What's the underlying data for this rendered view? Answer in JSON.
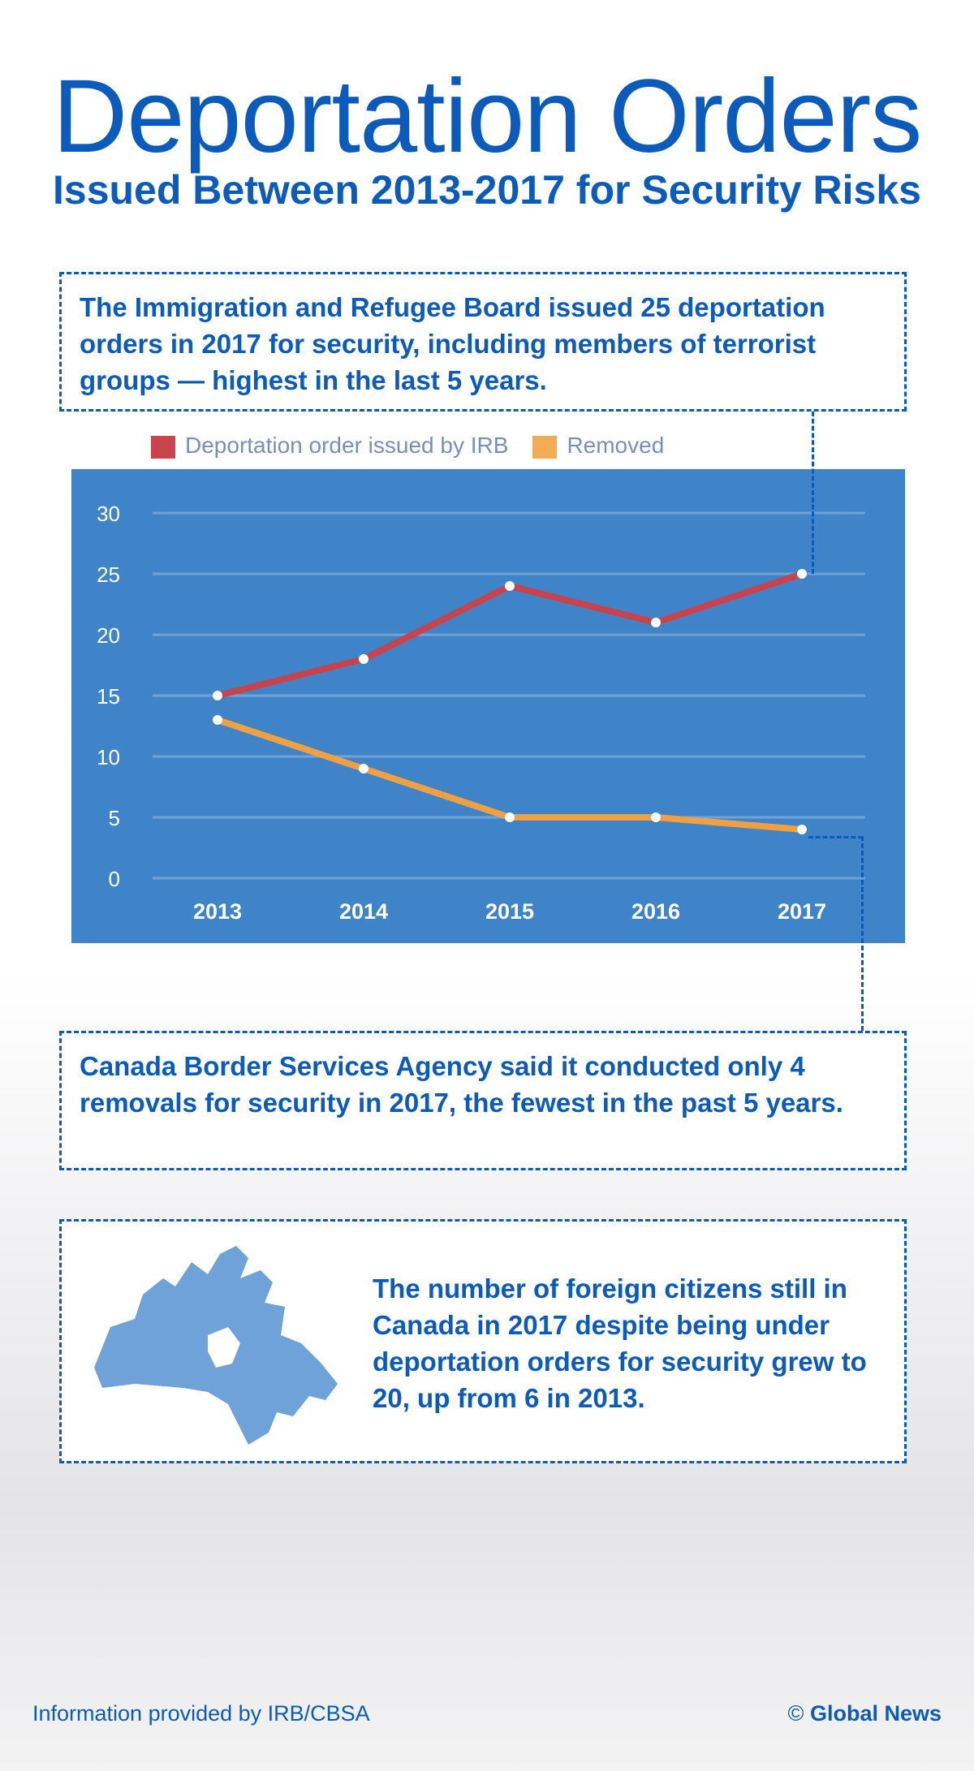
{
  "title": "Deportation Orders",
  "subtitle": "Issued Between 2013-2017 for Security Risks",
  "callouts": {
    "irb": "The Immigration and Refugee Board issued 25 deportation orders in 2017 for security, including members of terrorist groups — highest in the last 5 years.",
    "cbsa": "Canada Border Services Agency said it conducted only 4 removals for security in 2017, the fewest in the past 5 years.",
    "foreign": "The number of foreign citizens still in Canada in 2017 despite being under deportation orders for security grew to 20, up from 6 in 2013."
  },
  "footer": {
    "source": "Information provided by IRB/CBSA",
    "credit_symbol": "©",
    "credit": "Global News"
  },
  "chart_data": {
    "type": "line",
    "categories": [
      "2013",
      "2014",
      "2015",
      "2016",
      "2017"
    ],
    "series": [
      {
        "name": "Deportation order issued by IRB",
        "color": "#c8434b",
        "values": [
          15,
          18,
          24,
          21,
          25
        ]
      },
      {
        "name": "Removed",
        "color": "#f0a040",
        "values": [
          13,
          9,
          5,
          5,
          4
        ]
      }
    ],
    "yticks": [
      "0",
      "5",
      "10",
      "15",
      "20",
      "25",
      "30"
    ],
    "ylim": [
      0,
      30
    ],
    "grid": true,
    "legend": "top"
  }
}
